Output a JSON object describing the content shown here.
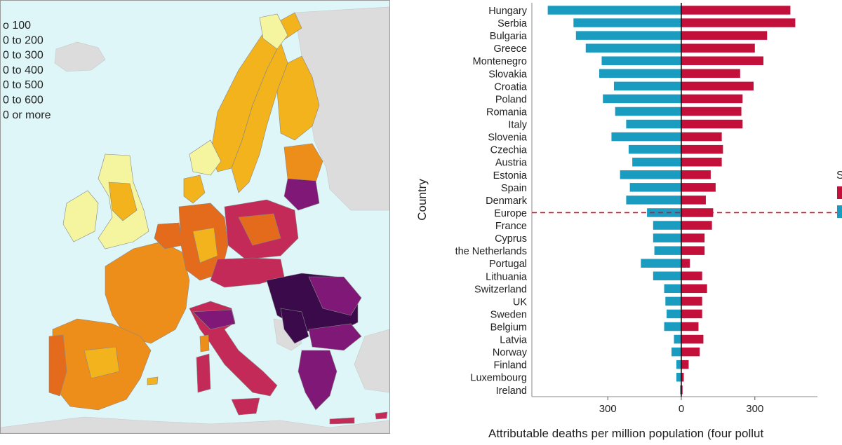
{
  "map": {
    "legend_items": [
      {
        "label": "o 100",
        "color": "#f5f5a0"
      },
      {
        "label": "0 to 200",
        "color": "#f2b31c"
      },
      {
        "label": "0 to 300",
        "color": "#ee8e1a"
      },
      {
        "label": "0 to 400",
        "color": "#e46a1c"
      },
      {
        "label": "0 to 500",
        "color": "#c42a57"
      },
      {
        "label": "0 to 600",
        "color": "#7f1877"
      },
      {
        "label": "0 or more",
        "color": "#3a0a4a"
      }
    ],
    "colors": {
      "sea": "#def6f8",
      "non_eu_land": "#dcdcdc"
    }
  },
  "chart_data": {
    "type": "bar",
    "orientation": "horizontal",
    "categories": [
      "Hungary",
      "Serbia",
      "Bulgaria",
      "Greece",
      "Montenegro",
      "Slovakia",
      "Croatia",
      "Poland",
      "Romania",
      "Italy",
      "Slovenia",
      "Czechia",
      "Austria",
      "Estonia",
      "Spain",
      "Denmark",
      "Europe",
      "France",
      "Cyprus",
      "the Netherlands",
      "Portugal",
      "Lithuania",
      "Switzerland",
      "UK",
      "Sweden",
      "Belgium",
      "Latvia",
      "Norway",
      "Finland",
      "Luxembourg",
      "Ireland"
    ],
    "series": [
      {
        "color": "#1a9cc0",
        "values": [
          545,
          440,
          430,
          390,
          325,
          335,
          275,
          320,
          270,
          225,
          285,
          215,
          200,
          250,
          210,
          225,
          140,
          115,
          115,
          110,
          165,
          115,
          70,
          65,
          60,
          70,
          30,
          40,
          20,
          20,
          5
        ]
      },
      {
        "color": "#c3103a",
        "values": [
          445,
          465,
          350,
          300,
          335,
          240,
          295,
          250,
          245,
          250,
          165,
          170,
          165,
          120,
          140,
          100,
          130,
          125,
          95,
          95,
          35,
          85,
          105,
          85,
          85,
          70,
          90,
          75,
          30,
          10,
          5
        ]
      }
    ],
    "ylabel": "Country",
    "xlabel": "Attributable deaths per million population (four pollut",
    "x_ticks": [
      {
        "value": -300,
        "label": "300"
      },
      {
        "value": 0,
        "label": "0"
      },
      {
        "value": 300,
        "label": "300"
      }
    ],
    "xlim": [
      -600,
      600
    ],
    "reference_line_category": "Europe",
    "legend_partial": {
      "label": "S"
    }
  }
}
